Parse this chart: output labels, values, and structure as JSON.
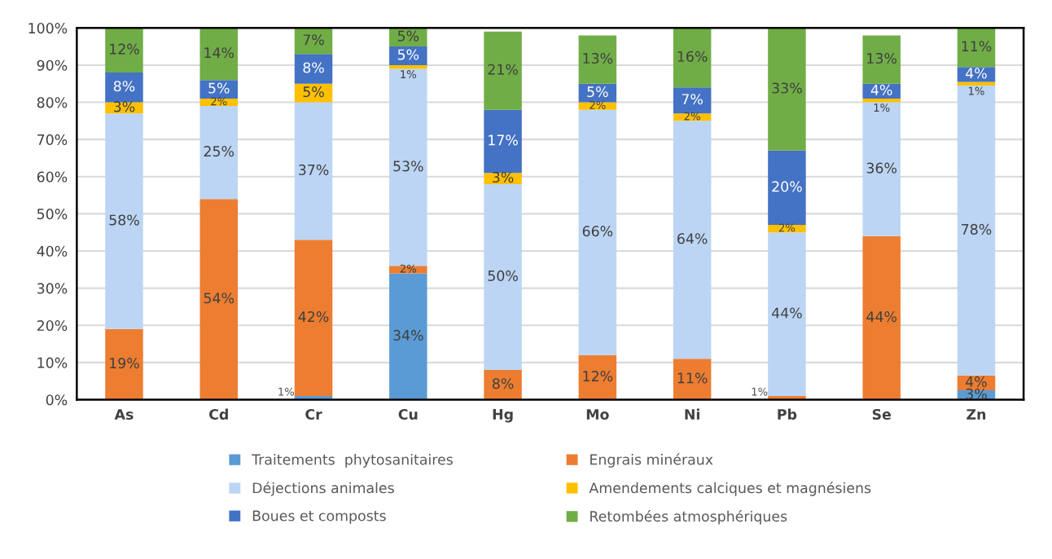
{
  "chart_data": {
    "type": "bar",
    "stacked": true,
    "grid": "y",
    "legend": "bottom",
    "categories": [
      "As",
      "Cd",
      "Cr",
      "Cu",
      "Hg",
      "Mo",
      "Ni",
      "Pb",
      "Se",
      "Zn"
    ],
    "ylim": [
      0,
      100
    ],
    "yticks": [
      {
        "value": 0,
        "label": "0%"
      },
      {
        "value": 10,
        "label": "10%"
      },
      {
        "value": 20,
        "label": "20%"
      },
      {
        "value": 30,
        "label": "30%"
      },
      {
        "value": 40,
        "label": "40%"
      },
      {
        "value": 50,
        "label": "50%"
      },
      {
        "value": 60,
        "label": "60%"
      },
      {
        "value": 70,
        "label": "70%"
      },
      {
        "value": 80,
        "label": "80%"
      },
      {
        "value": 90,
        "label": "90%"
      },
      {
        "value": 100,
        "label": "100%"
      }
    ],
    "series": [
      {
        "name": "Traitements  phytosanitaires",
        "color": "#5b9bd5",
        "values": [
          null,
          null,
          1,
          34,
          null,
          null,
          null,
          null,
          null,
          2.5
        ],
        "value_labels": [
          null,
          null,
          "1%",
          "34%",
          null,
          null,
          null,
          null,
          null,
          "3%"
        ]
      },
      {
        "name": "Engrais minéraux",
        "color": "#ed7d31",
        "values": [
          19,
          54,
          42,
          2,
          8,
          12,
          11,
          1,
          44,
          4
        ],
        "value_labels": [
          "19%",
          "54%",
          "42%",
          "2%",
          "8%",
          "12%",
          "11%",
          "1%",
          "44%",
          "4%"
        ]
      },
      {
        "name": "Déjections animales",
        "color": "#bcd5f4",
        "values": [
          58,
          25,
          37,
          53,
          50,
          66,
          64,
          44,
          36,
          78
        ],
        "value_labels": [
          "58%",
          "25%",
          "37%",
          "53%",
          "50%",
          "66%",
          "64%",
          "44%",
          "36%",
          "78%"
        ]
      },
      {
        "name": "Amendements calciques et magnésiens",
        "color": "#ffc000",
        "values": [
          3,
          2,
          5,
          1,
          3,
          2,
          2,
          2,
          1,
          1
        ],
        "value_labels": [
          "3%",
          "2%",
          "5%",
          "1%",
          "3%",
          "2%",
          "2%",
          "2%",
          "1%",
          "1%"
        ]
      },
      {
        "name": "Boues et composts",
        "color": "#4472c4",
        "values": [
          8,
          5,
          8,
          5,
          17,
          5,
          7,
          20,
          4,
          4
        ],
        "value_labels": [
          "8%",
          "5%",
          "8%",
          "5%",
          "17%",
          "5%",
          "7%",
          "20%",
          "4%",
          "4%"
        ]
      },
      {
        "name": "Retombées atmosphériques",
        "color": "#70ad47",
        "values": [
          12,
          14,
          7,
          5,
          21,
          13,
          16,
          33,
          13,
          10.5
        ],
        "value_labels": [
          "12%",
          "14%",
          "7%",
          "5%",
          "21%",
          "13%",
          "16%",
          "33%",
          "13%",
          "11%"
        ]
      }
    ]
  }
}
